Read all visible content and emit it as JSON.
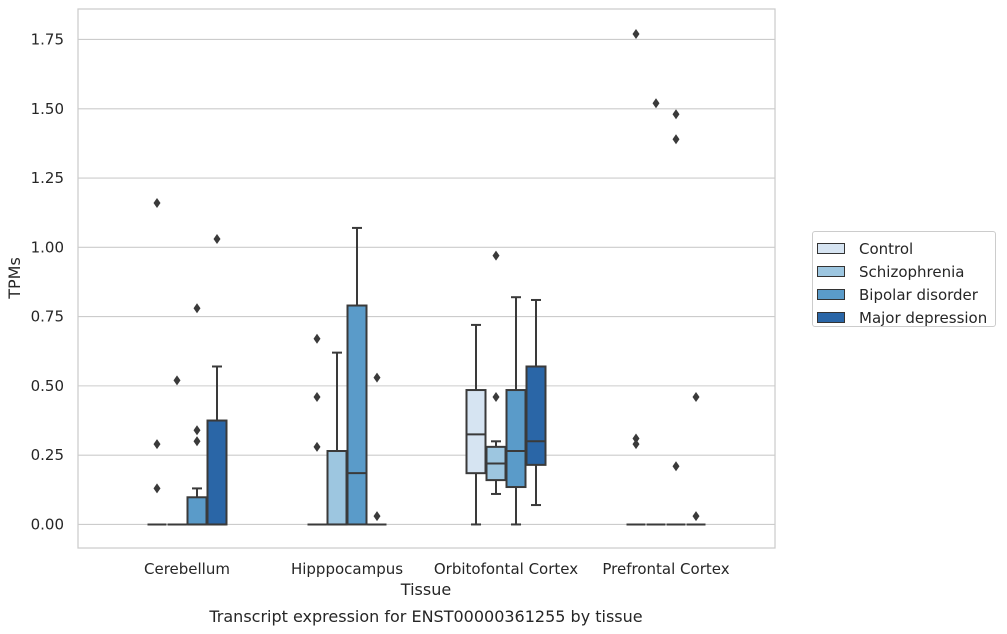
{
  "chart_data": {
    "type": "box",
    "title": "",
    "caption": "Transcript expression for ENST00000361255 by tissue",
    "xlabel": "Tissue",
    "ylabel": "TPMs",
    "ylim": [
      -0.085,
      1.86
    ],
    "yticks": [
      "0.00",
      "0.25",
      "0.50",
      "0.75",
      "1.00",
      "1.25",
      "1.50",
      "1.75"
    ],
    "grid": true,
    "legend_position": "right",
    "categories": [
      "Cerebellum",
      "Hipppocampus",
      "Orbitofontal Cortex",
      "Prefrontal Cortex"
    ],
    "series": [
      {
        "name": "Control",
        "color": "#d6e4f2",
        "boxes": [
          {
            "q1": 0,
            "median": 0,
            "q3": 0,
            "whislo": 0,
            "whishi": 0,
            "fliers": [
              1.16,
              0.29,
              0.13
            ]
          },
          {
            "q1": 0,
            "median": 0,
            "q3": 0,
            "whislo": 0,
            "whishi": 0,
            "fliers": [
              0.67,
              0.46,
              0.28
            ]
          },
          {
            "q1": 0.185,
            "median": 0.325,
            "q3": 0.485,
            "whislo": 0,
            "whishi": 0.72,
            "fliers": []
          },
          {
            "q1": 0,
            "median": 0,
            "q3": 0,
            "whislo": 0,
            "whishi": 0,
            "fliers": [
              1.77,
              0.31,
              0.29
            ]
          }
        ]
      },
      {
        "name": "Schizophrenia",
        "color": "#9dc6e0",
        "boxes": [
          {
            "q1": 0,
            "median": 0,
            "q3": 0,
            "whislo": 0,
            "whishi": 0,
            "fliers": [
              0.52
            ]
          },
          {
            "q1": 0,
            "median": 0,
            "q3": 0.265,
            "whislo": 0,
            "whishi": 0.62,
            "fliers": []
          },
          {
            "q1": 0.16,
            "median": 0.22,
            "q3": 0.28,
            "whislo": 0.11,
            "whishi": 0.3,
            "fliers": [
              0.97,
              0.46
            ]
          },
          {
            "q1": 0,
            "median": 0,
            "q3": 0,
            "whislo": 0,
            "whishi": 0,
            "fliers": [
              1.52
            ]
          }
        ]
      },
      {
        "name": "Bipolar disorder",
        "color": "#5a9bc9",
        "boxes": [
          {
            "q1": 0,
            "median": 0,
            "q3": 0.098,
            "whislo": 0,
            "whishi": 0.13,
            "fliers": [
              0.78,
              0.34,
              0.3
            ]
          },
          {
            "q1": 0,
            "median": 0.185,
            "q3": 0.79,
            "whislo": 0,
            "whishi": 1.07,
            "fliers": []
          },
          {
            "q1": 0.135,
            "median": 0.265,
            "q3": 0.485,
            "whislo": 0,
            "whishi": 0.82,
            "fliers": []
          },
          {
            "q1": 0,
            "median": 0,
            "q3": 0,
            "whislo": 0,
            "whishi": 0,
            "fliers": [
              1.48,
              1.39,
              0.21
            ]
          }
        ]
      },
      {
        "name": "Major depression",
        "color": "#2a66a7",
        "boxes": [
          {
            "q1": 0,
            "median": 0,
            "q3": 0.375,
            "whislo": 0,
            "whishi": 0.57,
            "fliers": [
              1.03
            ]
          },
          {
            "q1": 0,
            "median": 0,
            "q3": 0,
            "whislo": 0,
            "whishi": 0,
            "fliers": [
              0.53,
              0.03
            ]
          },
          {
            "q1": 0.215,
            "median": 0.3,
            "q3": 0.57,
            "whislo": 0.07,
            "whishi": 0.81,
            "fliers": []
          },
          {
            "q1": 0,
            "median": 0,
            "q3": 0,
            "whislo": 0,
            "whishi": 0,
            "fliers": [
              0.46,
              0.03
            ]
          }
        ]
      }
    ]
  }
}
